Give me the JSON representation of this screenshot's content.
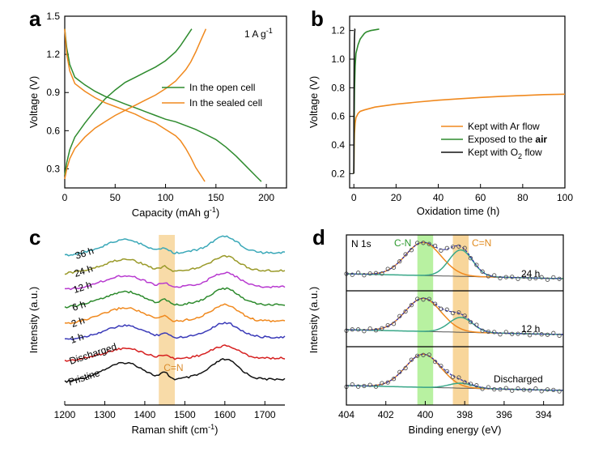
{
  "chart_data": [
    {
      "panel": "a",
      "type": "line",
      "title": "",
      "annotation": "1 A g",
      "annotation_sup": "-1",
      "xlabel": "Capacity (mAh g",
      "xlabel_sup": "-1",
      "xlabel_end": ")",
      "ylabel": "Voltage (V)",
      "xlim": [
        0,
        220
      ],
      "ylim": [
        0.15,
        1.5
      ],
      "xticks": [
        "0",
        "50",
        "100",
        "150",
        "200"
      ],
      "yticks": [
        "0.3",
        "0.6",
        "0.9",
        "1.2",
        "1.5"
      ],
      "legend_position": "center-right",
      "series": [
        {
          "name": "In the open cell",
          "color": "#2e8b2e",
          "part": "discharge",
          "x": [
            0,
            2,
            5,
            10,
            15,
            20,
            30,
            40,
            50,
            60,
            70,
            80,
            90,
            100,
            110,
            120,
            130,
            140,
            150,
            160,
            170,
            180,
            190,
            195
          ],
          "y": [
            1.4,
            1.25,
            1.12,
            1.02,
            0.99,
            0.96,
            0.91,
            0.87,
            0.84,
            0.81,
            0.78,
            0.75,
            0.72,
            0.69,
            0.67,
            0.64,
            0.61,
            0.57,
            0.53,
            0.47,
            0.4,
            0.32,
            0.24,
            0.2
          ]
        },
        {
          "name": "In the open cell",
          "color": "#2e8b2e",
          "part": "charge",
          "x": [
            0,
            2,
            5,
            10,
            20,
            30,
            40,
            50,
            60,
            70,
            80,
            90,
            100,
            110,
            115,
            120,
            126
          ],
          "y": [
            0.25,
            0.35,
            0.45,
            0.55,
            0.66,
            0.76,
            0.85,
            0.92,
            0.98,
            1.02,
            1.06,
            1.1,
            1.15,
            1.22,
            1.27,
            1.33,
            1.4
          ]
        },
        {
          "name": "In the sealed cell",
          "color": "#f0891e",
          "part": "discharge",
          "x": [
            0,
            2,
            5,
            10,
            20,
            30,
            40,
            50,
            60,
            70,
            80,
            90,
            100,
            110,
            115,
            120,
            125,
            130,
            135,
            139
          ],
          "y": [
            1.4,
            1.2,
            1.07,
            0.97,
            0.91,
            0.86,
            0.82,
            0.79,
            0.76,
            0.73,
            0.69,
            0.66,
            0.61,
            0.56,
            0.52,
            0.46,
            0.39,
            0.31,
            0.25,
            0.2
          ]
        },
        {
          "name": "In the sealed cell",
          "color": "#f0891e",
          "part": "charge",
          "x": [
            0,
            2,
            5,
            10,
            20,
            30,
            40,
            50,
            60,
            70,
            80,
            90,
            100,
            110,
            120,
            125,
            130,
            135,
            140
          ],
          "y": [
            0.22,
            0.3,
            0.38,
            0.46,
            0.55,
            0.62,
            0.67,
            0.72,
            0.76,
            0.8,
            0.84,
            0.88,
            0.93,
            0.99,
            1.08,
            1.14,
            1.22,
            1.31,
            1.4
          ]
        }
      ]
    },
    {
      "panel": "b",
      "type": "line",
      "title": "",
      "xlabel": "Oxidation time (h)",
      "ylabel": "Voltage (V)",
      "xlim": [
        -2,
        100
      ],
      "ylim": [
        0.1,
        1.3
      ],
      "xticks": [
        "0",
        "20",
        "40",
        "60",
        "80",
        "100"
      ],
      "yticks": [
        "0.2",
        "0.4",
        "0.6",
        "0.8",
        "1.0",
        "1.2"
      ],
      "legend_position": "lower-right",
      "series": [
        {
          "name": "Kept with Ar flow",
          "color": "#f0891e",
          "x": [
            0,
            0.1,
            0.3,
            0.6,
            1,
            2,
            3,
            5,
            10,
            20,
            30,
            40,
            50,
            60,
            70,
            80,
            90,
            100
          ],
          "y": [
            0.2,
            0.36,
            0.48,
            0.55,
            0.59,
            0.62,
            0.635,
            0.645,
            0.665,
            0.685,
            0.7,
            0.713,
            0.723,
            0.732,
            0.74,
            0.746,
            0.752,
            0.755
          ]
        },
        {
          "name": "Exposed to the air",
          "color": "#2e8b2e",
          "x": [
            0,
            0.1,
            0.3,
            0.6,
            1,
            2,
            3,
            4,
            5,
            6,
            8,
            10,
            12
          ],
          "y": [
            0.2,
            0.5,
            0.78,
            0.95,
            1.04,
            1.1,
            1.14,
            1.16,
            1.18,
            1.19,
            1.2,
            1.205,
            1.21
          ]
        },
        {
          "name": "Kept with O2 flow",
          "color": "#111111",
          "x": [
            0,
            0.05,
            0.1,
            0.2,
            0.3,
            0.4,
            0.5,
            0.6
          ],
          "y": [
            0.2,
            0.55,
            0.85,
            1.05,
            1.15,
            1.19,
            1.21,
            1.21
          ]
        }
      ],
      "legend_labels": {
        "ar": "Kept with Ar flow",
        "air_prefix": "Exposed to the ",
        "air_bold": "air",
        "o2_prefix": "Kept with O",
        "o2_sub": "2",
        "o2_suffix": " flow"
      }
    },
    {
      "panel": "c",
      "type": "line",
      "title": "",
      "xlabel": "Raman shift (cm",
      "xlabel_sup": "-1",
      "xlabel_end": ")",
      "ylabel": "Intensity (a.u.)",
      "xlim": [
        1200,
        1750
      ],
      "xticks": [
        "1200",
        "1300",
        "1400",
        "1500",
        "1600",
        "1700"
      ],
      "highlight": {
        "label": "C=N",
        "from": 1435,
        "to": 1475,
        "color": "#f5c87a"
      },
      "series": [
        {
          "name": "Pristine",
          "color": "#111111"
        },
        {
          "name": "Discharged",
          "color": "#d62020"
        },
        {
          "name": "1 h",
          "color": "#3a3ab8"
        },
        {
          "name": "2 h",
          "color": "#f0891e"
        },
        {
          "name": "6 h",
          "color": "#2e8b2e"
        },
        {
          "name": "12 h",
          "color": "#b83ad0"
        },
        {
          "name": "24 h",
          "color": "#9a9a2a"
        },
        {
          "name": "36 h",
          "color": "#3aa8b8"
        }
      ]
    },
    {
      "panel": "d",
      "type": "line",
      "title": "",
      "annotation": "N 1s",
      "xlabel": "Binding energy (eV)",
      "ylabel": "Intensity (a.u.)",
      "xlim": [
        404,
        393
      ],
      "xticks": [
        "404",
        "402",
        "400",
        "398",
        "396",
        "394"
      ],
      "highlights": [
        {
          "label": "C-N",
          "from": 400.4,
          "to": 399.6,
          "color": "#a6ee8a"
        },
        {
          "label": "C=N",
          "from": 398.6,
          "to": 397.8,
          "color": "#f5c87a"
        }
      ],
      "subpanels": [
        {
          "label": "24 h",
          "cn_peak": 1.0,
          "ceqn_peak": 0.8
        },
        {
          "label": "12 h",
          "cn_peak": 1.0,
          "ceqn_peak": 0.45
        },
        {
          "label": "Discharged",
          "cn_peak": 1.0,
          "ceqn_peak": 0.15
        }
      ]
    }
  ]
}
